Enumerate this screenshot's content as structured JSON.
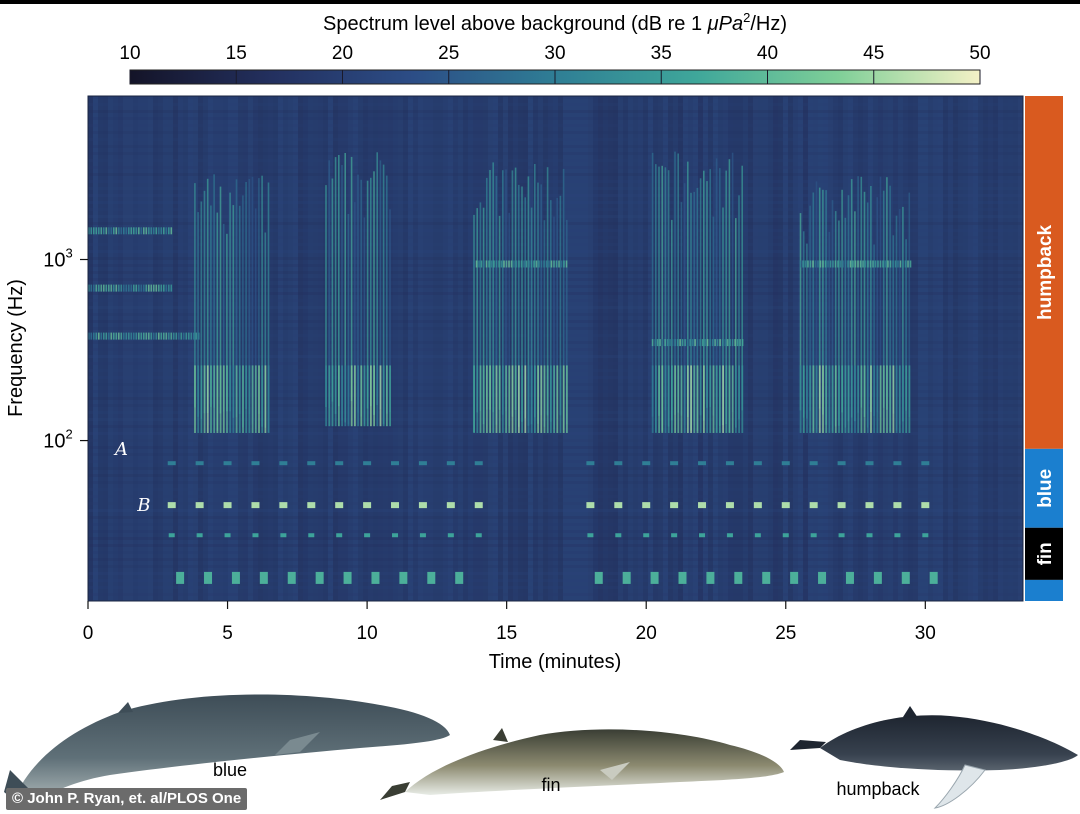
{
  "chart_data": {
    "type": "heatmap",
    "colorbar": {
      "title_main": "Spectrum level above background (dB re 1 ",
      "title_unit": "μPa",
      "title_sup": "2",
      "title_end": "/Hz)",
      "ticks": [
        "10",
        "15",
        "20",
        "25",
        "30",
        "35",
        "40",
        "45",
        "50"
      ],
      "range": [
        10,
        50
      ],
      "colors": [
        "#141428",
        "#23305f",
        "#2c4d86",
        "#2f7e95",
        "#3fa79a",
        "#7fcf98",
        "#f4f1c6"
      ]
    },
    "xlabel": "Time (minutes)",
    "ylabel": "Frequency (Hz)",
    "x_ticks": [
      "0",
      "5",
      "10",
      "15",
      "20",
      "25",
      "30"
    ],
    "xlim": [
      0,
      33.5
    ],
    "y_ticks": [
      {
        "base": "10",
        "exp": "3",
        "value": 1000
      },
      {
        "base": "10",
        "exp": "2",
        "value": 100
      }
    ],
    "y_scale": "log",
    "ylim": [
      13,
      8000
    ],
    "call_labels": [
      {
        "text": "A",
        "time": 1.2,
        "freq": 90
      },
      {
        "text": "B",
        "time": 2.0,
        "freq": 44
      }
    ],
    "species_bands": [
      {
        "label": "humpback",
        "color": "#d95a1f",
        "freq_range": [
          90,
          8000
        ]
      },
      {
        "label": "blue",
        "color": "#1b7fcf",
        "freq_range": [
          33,
          90
        ]
      },
      {
        "label": "fin",
        "color": "#000000",
        "freq_range": [
          17,
          33
        ]
      },
      {
        "label": "",
        "color": "#1b7fcf",
        "freq_range": [
          13,
          17
        ]
      }
    ],
    "blue_whale_A_calls": {
      "freq_hz": 75,
      "times_min": [
        3,
        4,
        5,
        6,
        7,
        8,
        9,
        10,
        11,
        12,
        13,
        14,
        18,
        19,
        20,
        21,
        22,
        23,
        24,
        25,
        26,
        27,
        28,
        29,
        30
      ]
    },
    "blue_whale_B_calls": {
      "freq_hz": 44,
      "times_min": [
        3,
        4,
        5,
        6,
        7,
        8,
        9,
        10,
        11,
        12,
        13,
        14,
        18,
        19,
        20,
        21,
        22,
        23,
        24,
        25,
        26,
        27,
        28,
        29,
        30
      ]
    },
    "fin_whale_calls": {
      "freq_hz": 17,
      "times_min": [
        3.3,
        4.3,
        5.3,
        6.3,
        7.3,
        8.3,
        9.3,
        10.3,
        11.3,
        12.3,
        13.3,
        18.3,
        19.3,
        20.3,
        21.3,
        22.3,
        23.3,
        24.3,
        25.3,
        26.3,
        27.3,
        28.3,
        29.3,
        30.3
      ]
    },
    "humpback_song_bursts": [
      {
        "start": 3.8,
        "end": 6.5,
        "low_hz": 110,
        "high_hz": 3000
      },
      {
        "start": 8.5,
        "end": 10.8,
        "low_hz": 120,
        "high_hz": 4000
      },
      {
        "start": 13.8,
        "end": 17.2,
        "low_hz": 110,
        "high_hz": 3500
      },
      {
        "start": 20.2,
        "end": 23.5,
        "low_hz": 110,
        "high_hz": 4000
      },
      {
        "start": 25.5,
        "end": 29.5,
        "low_hz": 110,
        "high_hz": 3000
      }
    ]
  },
  "whales": [
    {
      "label": "blue"
    },
    {
      "label": "fin"
    },
    {
      "label": "humpback"
    }
  ],
  "credit": "© John P. Ryan, et. al/PLOS One"
}
